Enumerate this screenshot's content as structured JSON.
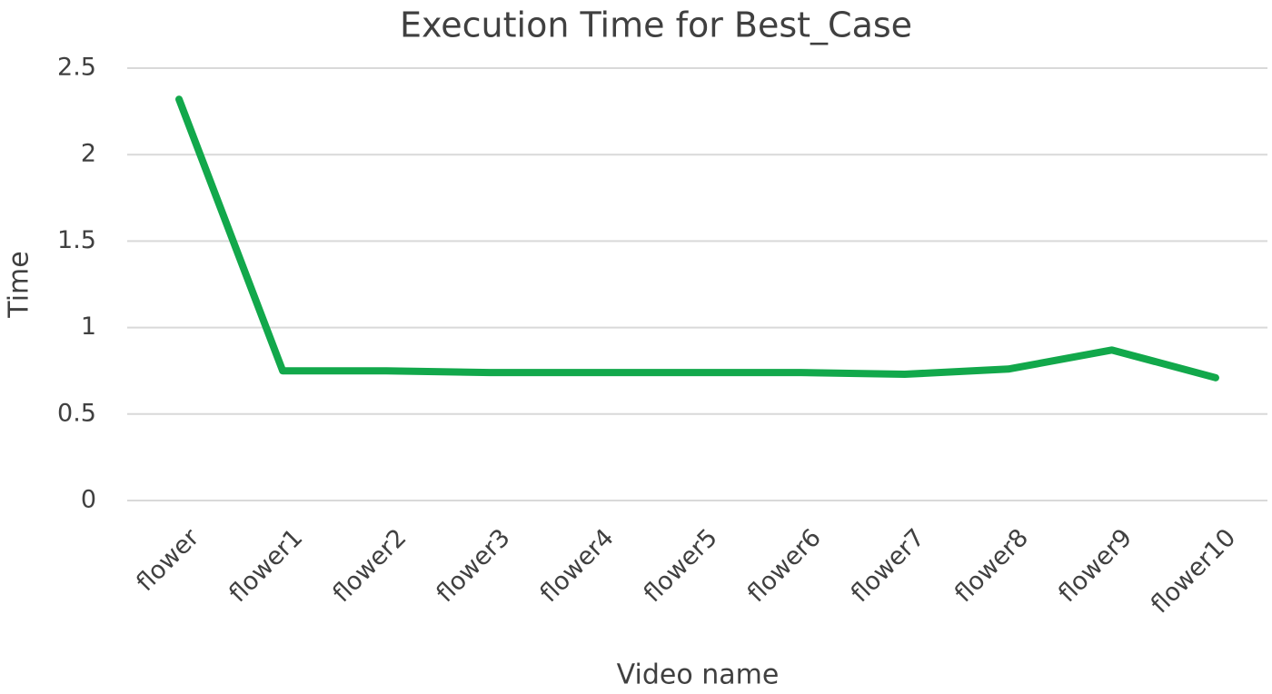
{
  "chart_data": {
    "type": "line",
    "title": "Execution Time for Best_Case",
    "x_label": "Video name",
    "y_label": "Time",
    "categories": [
      "flower",
      "flower1",
      "flower2",
      "flower3",
      "flower4",
      "flower5",
      "flower6",
      "flower7",
      "flower8",
      "flower9",
      "flower10"
    ],
    "series": [
      {
        "name": "Time",
        "color": "#12a84b",
        "values": [
          2.32,
          0.75,
          0.75,
          0.74,
          0.74,
          0.74,
          0.74,
          0.73,
          0.76,
          0.87,
          0.71
        ]
      }
    ],
    "ylim": [
      0,
      2.5
    ],
    "yticks": [
      0,
      0.5,
      1,
      1.5,
      2,
      2.5
    ],
    "grid": true
  }
}
